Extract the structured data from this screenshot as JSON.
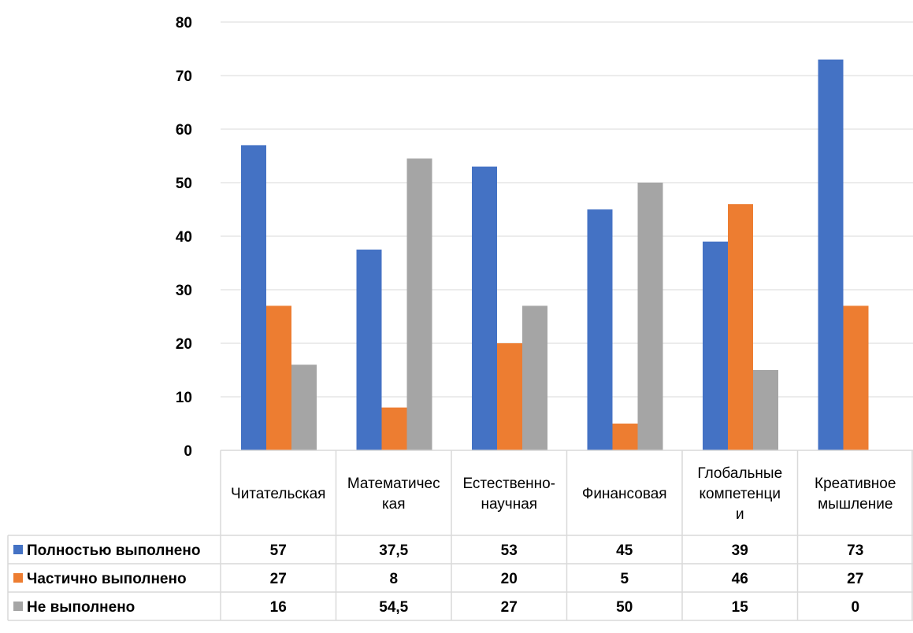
{
  "chart_data": {
    "type": "bar",
    "categories": [
      [
        "Читательская"
      ],
      [
        "Математичес",
        "кая"
      ],
      [
        "Естественно-",
        "научная"
      ],
      [
        "Финансовая"
      ],
      [
        "Глобальные",
        "компетенци",
        "и"
      ],
      [
        "Креативное",
        "мышление"
      ]
    ],
    "series": [
      {
        "name": "Полностью выполнено",
        "color": "#4472C4",
        "values": [
          57,
          37.5,
          53,
          45,
          39,
          73
        ],
        "labels": [
          "57",
          "37,5",
          "53",
          "45",
          "39",
          "73"
        ]
      },
      {
        "name": "Частично выполнено",
        "color": "#ED7D31",
        "values": [
          27,
          8,
          20,
          5,
          46,
          27
        ],
        "labels": [
          "27",
          "8",
          "20",
          "5",
          "46",
          "27"
        ]
      },
      {
        "name": "Не выполнено",
        "color": "#A5A5A5",
        "values": [
          16,
          54.5,
          27,
          50,
          15,
          0
        ],
        "labels": [
          "16",
          "54,5",
          "27",
          "50",
          "15",
          "0"
        ]
      }
    ],
    "ylim": [
      0,
      80
    ],
    "yticks": [
      0,
      10,
      20,
      30,
      40,
      50,
      60,
      70,
      80
    ],
    "grid": true,
    "legend": "data-table"
  }
}
